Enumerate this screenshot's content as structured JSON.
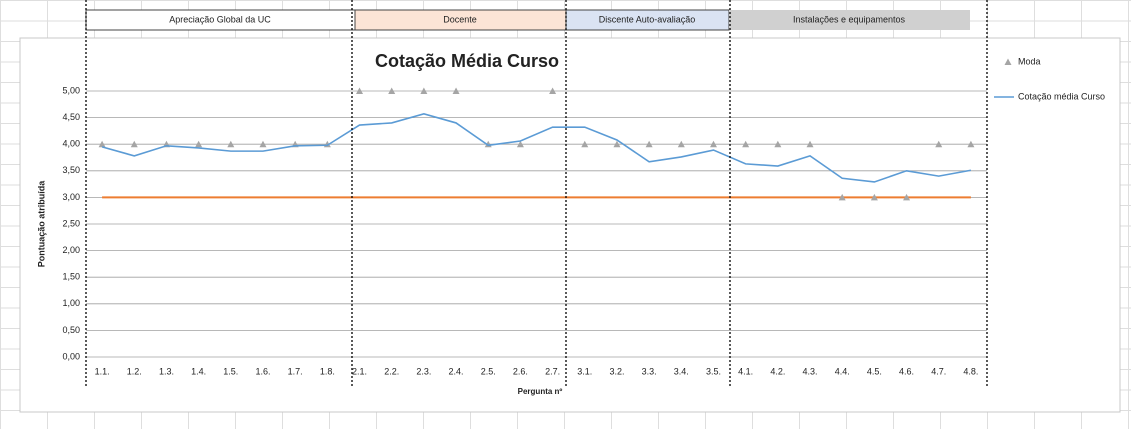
{
  "headers": [
    "Apreciação Global da UC",
    "Docente",
    "Discente Auto-avaliação",
    "Instalações e equipamentos"
  ],
  "chart_data": {
    "type": "line",
    "title": "Cotação Média Curso",
    "x_label": "Pergunta nº",
    "y_label": "Pontuação atribuída",
    "categories": [
      "1.1.",
      "1.2.",
      "1.3.",
      "1.4.",
      "1.5.",
      "1.6.",
      "1.7.",
      "1.8.",
      "2.1.",
      "2.2.",
      "2.3.",
      "2.4.",
      "2.5.",
      "2.6.",
      "2.7.",
      "3.1.",
      "3.2.",
      "3.3.",
      "3.4.",
      "3.5.",
      "4.1.",
      "4.2.",
      "4.3.",
      "4.4.",
      "4.5.",
      "4.6.",
      "4.7.",
      "4.8."
    ],
    "series": [
      {
        "name": "Moda",
        "color": "#a5a5a5",
        "marker": "triangle",
        "line": false,
        "values": [
          4,
          4,
          4,
          4,
          4,
          4,
          4,
          4,
          5,
          5,
          5,
          5,
          4,
          4,
          5,
          4,
          4,
          4,
          4,
          4,
          4,
          4,
          4,
          3,
          3,
          3,
          4,
          4
        ]
      },
      {
        "name": "Cotação média Curso",
        "color": "#5b9bd5",
        "marker": "none",
        "line": true,
        "values": [
          3.95,
          3.78,
          3.97,
          3.93,
          3.87,
          3.87,
          3.97,
          3.98,
          4.36,
          4.4,
          4.57,
          4.4,
          3.98,
          4.06,
          4.32,
          4.32,
          4.08,
          3.67,
          3.76,
          3.89,
          3.63,
          3.59,
          3.78,
          3.36,
          3.29,
          3.5,
          3.4,
          3.51
        ]
      }
    ],
    "reference_line": {
      "value": 3,
      "color": "#ed7d31"
    },
    "ylim": [
      0,
      5
    ],
    "yticks": [
      {
        "value": 0,
        "label": "0,00"
      },
      {
        "value": 0.5,
        "label": "0,50"
      },
      {
        "value": 1,
        "label": "1,00"
      },
      {
        "value": 1.5,
        "label": "1,50"
      },
      {
        "value": 2,
        "label": "2,00"
      },
      {
        "value": 2.5,
        "label": "2,50"
      },
      {
        "value": 3,
        "label": "3,00"
      },
      {
        "value": 3.5,
        "label": "3,50"
      },
      {
        "value": 4,
        "label": "4,00"
      },
      {
        "value": 4.5,
        "label": "4,50"
      },
      {
        "value": 5,
        "label": "5,00"
      }
    ],
    "grid": true,
    "legend": "right"
  }
}
